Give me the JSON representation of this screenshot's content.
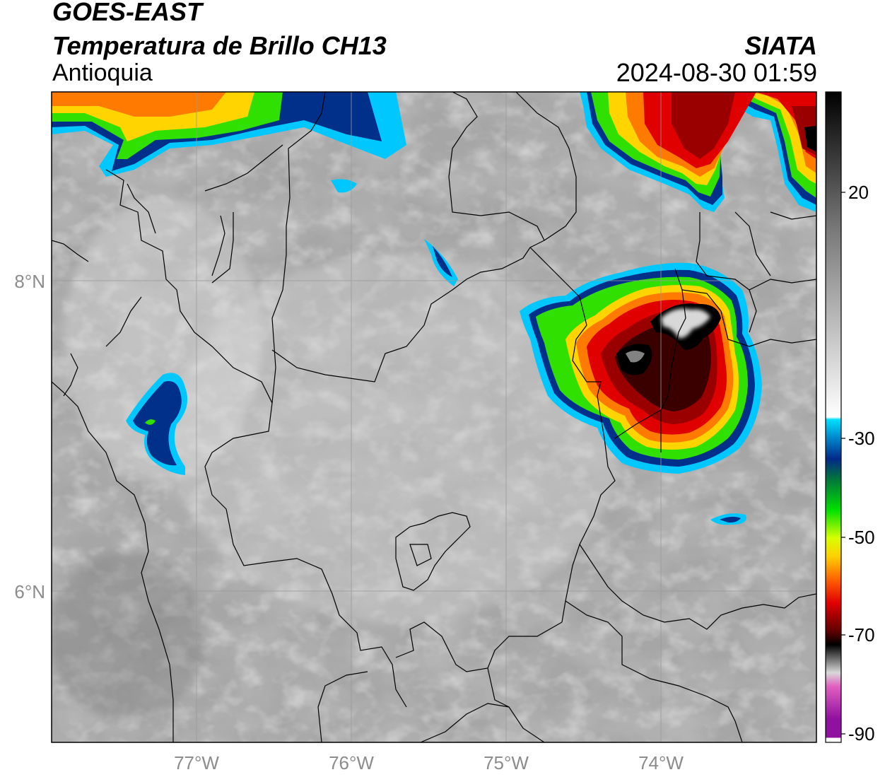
{
  "header": {
    "satellite": "GOES-EAST",
    "product": "Temperatura de Brillo CH13",
    "region": "Antioquia",
    "agency": "SIATA",
    "datetime": "2024-08-30 01:59"
  },
  "axes": {
    "lat_labels": [
      "8°N",
      "6°N"
    ],
    "lon_labels": [
      "77°W",
      "76°W",
      "75°W",
      "74°W"
    ]
  },
  "colorbar": {
    "tick_labels": [
      "20",
      "-30",
      "-50",
      "-70",
      "-90"
    ],
    "range": [
      -90,
      50
    ],
    "stops": [
      {
        "value": 50,
        "color": "#000000"
      },
      {
        "value": 20,
        "color": "#7a7a7a"
      },
      {
        "value": -20,
        "color": "#ffffff"
      },
      {
        "value": -20.5,
        "color": "#00e0ff"
      },
      {
        "value": -24,
        "color": "#0090d0"
      },
      {
        "value": -29,
        "color": "#002a8a"
      },
      {
        "value": -33,
        "color": "#007040"
      },
      {
        "value": -40,
        "color": "#00e000"
      },
      {
        "value": -46,
        "color": "#d8ff00"
      },
      {
        "value": -50,
        "color": "#ffd000"
      },
      {
        "value": -55,
        "color": "#ff6000"
      },
      {
        "value": -60,
        "color": "#e00000"
      },
      {
        "value": -66,
        "color": "#600000"
      },
      {
        "value": -69,
        "color": "#000000"
      },
      {
        "value": -75,
        "color": "#d8d8d8"
      },
      {
        "value": -78,
        "color": "#e060c0"
      },
      {
        "value": -85,
        "color": "#9010a0"
      },
      {
        "value": -89,
        "color": "#ffffff"
      }
    ]
  },
  "colors": {
    "cold_core": "#000000",
    "deep_red": "#9a0000",
    "red": "#e00000",
    "orange": "#ff7a00",
    "yellow": "#ffd400",
    "green": "#30e000",
    "dark_blue": "#00308a",
    "cyan": "#00c8ff",
    "cloud_grey": "#9a9a9a"
  }
}
